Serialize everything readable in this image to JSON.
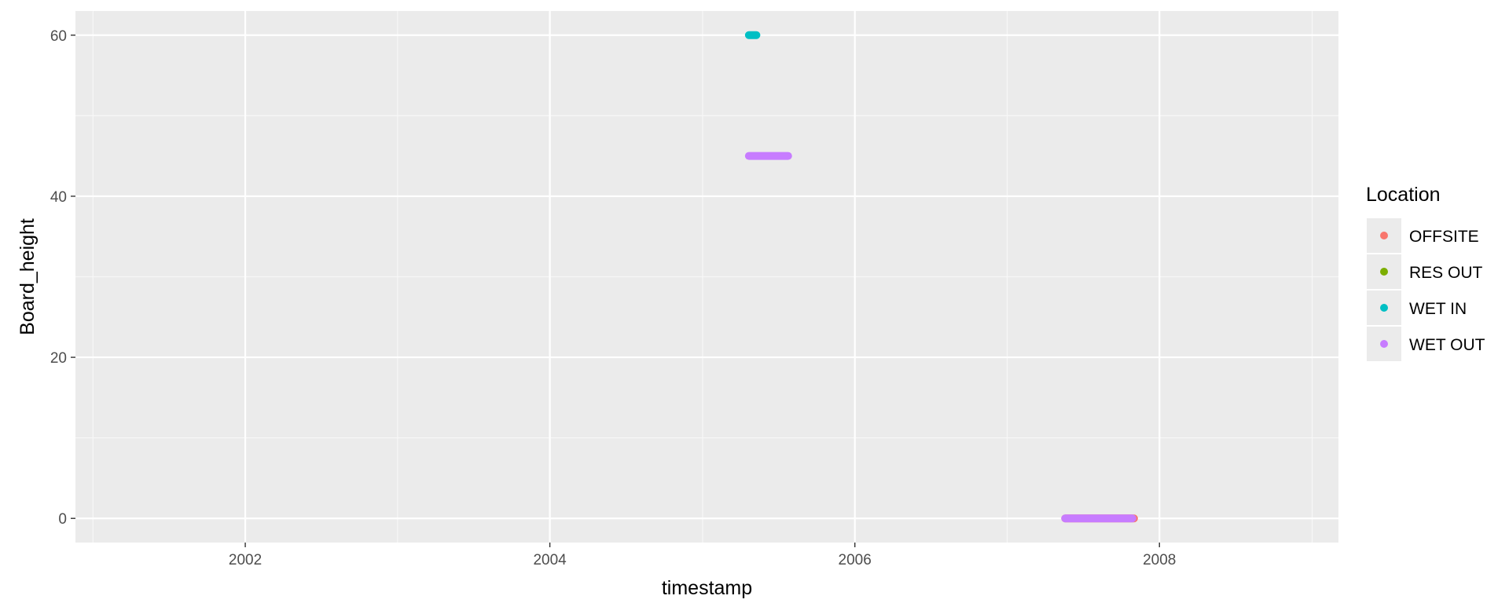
{
  "chart_data": {
    "type": "scatter",
    "xlabel": "timestamp",
    "ylabel": "Board_height",
    "x_axis_kind": "date",
    "xlim": [
      "2000-11-20",
      "2009-03-05"
    ],
    "ylim": [
      -3,
      63
    ],
    "x_ticks": [
      {
        "value": "2002-01-01",
        "label": "2002"
      },
      {
        "value": "2004-01-01",
        "label": "2004"
      },
      {
        "value": "2006-01-01",
        "label": "2006"
      },
      {
        "value": "2008-01-01",
        "label": "2008"
      }
    ],
    "x_minor_ticks": [
      "2001-01-01",
      "2003-01-01",
      "2005-01-01",
      "2007-01-01",
      "2009-01-01"
    ],
    "y_ticks": [
      {
        "value": 0,
        "label": "0"
      },
      {
        "value": 20,
        "label": "20"
      },
      {
        "value": 40,
        "label": "40"
      },
      {
        "value": 60,
        "label": "60"
      }
    ],
    "y_minor_ticks": [
      10,
      30,
      50
    ],
    "grid": true,
    "legend_position": "right",
    "legend_title": "Location",
    "series": [
      {
        "name": "OFFSITE",
        "color": "#F8766D",
        "segments": [
          {
            "x_start": "2007-05-20",
            "x_end": "2007-11-01",
            "y": 0
          }
        ]
      },
      {
        "name": "RES OUT",
        "color": "#7CAE00",
        "segments": []
      },
      {
        "name": "WET IN",
        "color": "#00BFC4",
        "segments": [
          {
            "x_start": "2005-04-22",
            "x_end": "2005-05-10",
            "y": 60
          }
        ]
      },
      {
        "name": "WET OUT",
        "color": "#C77CFF",
        "segments": [
          {
            "x_start": "2005-04-22",
            "x_end": "2005-07-25",
            "y": 45
          },
          {
            "x_start": "2007-05-20",
            "x_end": "2007-10-28",
            "y": 0
          }
        ]
      }
    ]
  }
}
